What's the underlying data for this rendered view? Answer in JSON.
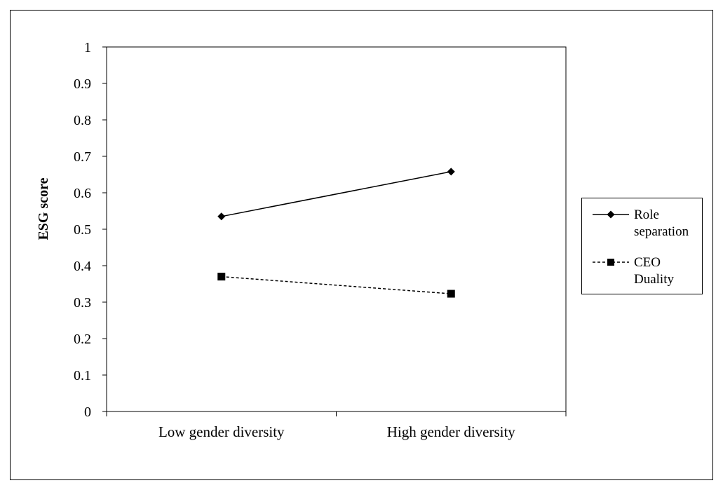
{
  "chart_data": {
    "type": "line",
    "title": "",
    "xlabel": "",
    "ylabel": "ESG score",
    "ylim": [
      0,
      1
    ],
    "yticks": [
      "0",
      "0.1",
      "0.2",
      "0.3",
      "0.4",
      "0.5",
      "0.6",
      "0.7",
      "0.8",
      "0.9",
      "1"
    ],
    "categories": [
      "Low gender diversity",
      "High gender diversity"
    ],
    "series": [
      {
        "name": "Role separation",
        "line": "solid",
        "marker": "diamond",
        "values": [
          0.535,
          0.658
        ]
      },
      {
        "name": "CEO Duality",
        "line": "dashed",
        "marker": "square",
        "values": [
          0.37,
          0.323
        ]
      }
    ],
    "legend": {
      "position": "right",
      "entries": [
        {
          "lines": [
            "Role",
            "separation"
          ]
        },
        {
          "lines": [
            "CEO",
            "Duality"
          ]
        }
      ]
    },
    "grid": false
  }
}
